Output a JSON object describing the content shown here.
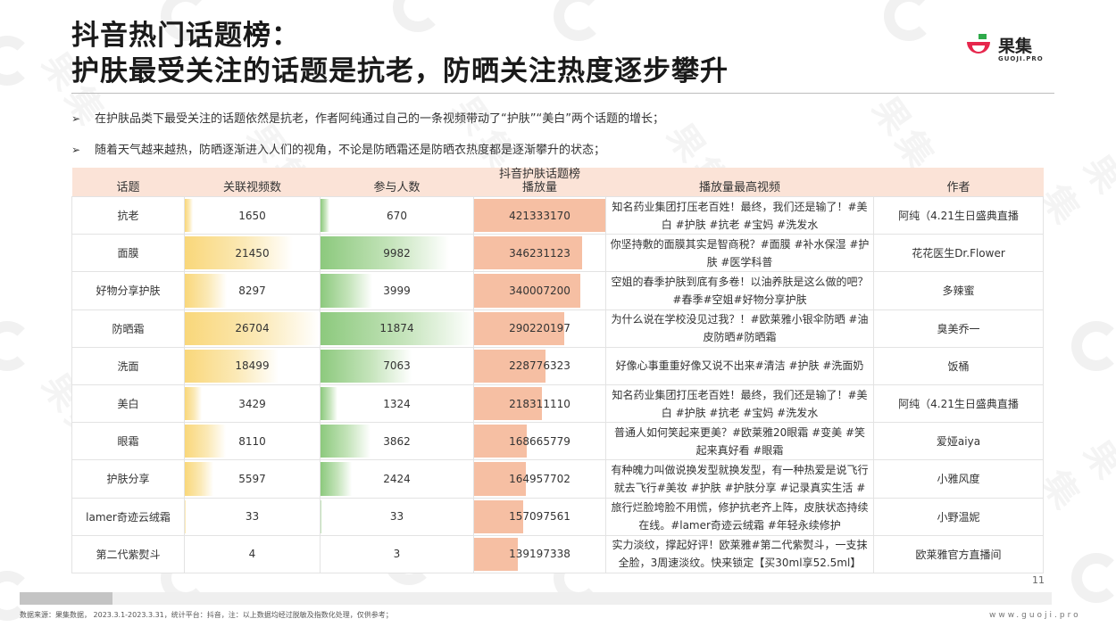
{
  "title": {
    "line1": "抖音热门话题榜：",
    "line2": "护肤最受关注的话题是抗老，防晒关注热度逐步攀升"
  },
  "logo": {
    "name": "果集",
    "sub": "GUOJI.PRO",
    "colors": {
      "green": "#2eaa4a",
      "red": "#e6264c"
    }
  },
  "bullets": [
    "在护肤品类下最受关注的话题依然是抗老，作者阿纯通过自己的一条视频带动了“护肤”“美白”两个话题的增长；",
    "随着天气越来越热，防晒逐渐进入人们的视角，不论是防晒霜还是防晒衣热度都是逐渐攀升的状态；"
  ],
  "table": {
    "headers": {
      "topic": "话题",
      "videos": "关联视频数",
      "participants": "参与人数",
      "plays_line1": "抖音护肤话题榜",
      "plays_line2": "播放量",
      "top_video": "播放量最高视频",
      "author": "作者"
    },
    "rows": [
      {
        "topic": "抗老",
        "videos": 1650,
        "participants": 670,
        "plays": 421333170,
        "top_video": "知名药业集团打压老百姓！最终，我们还是输了！#美白 #护肤 #抗老 #宝妈 #洗发水",
        "author": "阿纯（4.21生日盛典直播"
      },
      {
        "topic": "面膜",
        "videos": 21450,
        "participants": 9982,
        "plays": 346231123,
        "top_video": "你坚持敷的面膜其实是智商税？#面膜 #补水保湿 #护肤 #医学科普",
        "author": "花花医生Dr.Flower"
      },
      {
        "topic": "好物分享护肤",
        "videos": 8297,
        "participants": 3999,
        "plays": 340007200,
        "top_video": "空姐的春季护肤到底有多卷！以油养肤是这么做的吧？#春季#空姐#好物分享护肤",
        "author": "多辣蜜"
      },
      {
        "topic": "防晒霜",
        "videos": 26704,
        "participants": 11874,
        "plays": 290220197,
        "top_video": "为什么说在学校没见过我？！#欧莱雅小银伞防晒 #油皮防晒#防晒霜",
        "author": "臭美乔一"
      },
      {
        "topic": "洗面",
        "videos": 18499,
        "participants": 7063,
        "plays": 228776323,
        "top_video": "好像心事重重好像又说不出来#清洁 #护肤 #洗面奶",
        "author": "饭桶"
      },
      {
        "topic": "美白",
        "videos": 3429,
        "participants": 1324,
        "plays": 218311110,
        "top_video": "知名药业集团打压老百姓！最终，我们还是输了！#美白 #护肤 #抗老 #宝妈 #洗发水",
        "author": "阿纯（4.21生日盛典直播"
      },
      {
        "topic": "眼霜",
        "videos": 8110,
        "participants": 3862,
        "plays": 168665779,
        "top_video": "普通人如何笑起来更美？#欧莱雅20眼霜 #变美 #笑起来真好看 #眼霜",
        "author": "爱娅aiya"
      },
      {
        "topic": "护肤分享",
        "videos": 5597,
        "participants": 2424,
        "plays": 164957702,
        "top_video": "有种魄力叫做说换发型就换发型，有一种热爱是说飞行就去飞行#美妆 #护肤 #护肤分享 #记录真实生活 #",
        "author": "小雅风度"
      },
      {
        "topic": "lamer奇迹云绒霜",
        "videos": 33,
        "participants": 33,
        "plays": 157097561,
        "top_video": "旅行烂脸垮脸不用慌，修护抗老齐上阵，皮肤状态持续在线。#lamer奇迹云绒霜 #年轻永续修护",
        "author": "小野温妮"
      },
      {
        "topic": "第二代紫熨斗",
        "videos": 4,
        "participants": 3,
        "plays": 139197338,
        "top_video": "实力淡纹，撑起好评！欧莱雅#第二代紫熨斗，一支抹全脸，3周速淡纹。快来锁定【买30ml享52.5ml】",
        "author": "欧莱雅官方直播间"
      }
    ]
  },
  "bar_colors": {
    "videos": "#f9d77a",
    "participants": "#8cc97d",
    "plays": "#f6bfa3"
  },
  "page_number": "11",
  "footer": {
    "note": "数据来源：果集数据， 2023.3.1-2023.3.31，统计平台：抖音，注：以上数据均经过脱敏及指数化处理，仅供参考；",
    "url": "www.guoji.pro"
  },
  "progress": 0.09
}
